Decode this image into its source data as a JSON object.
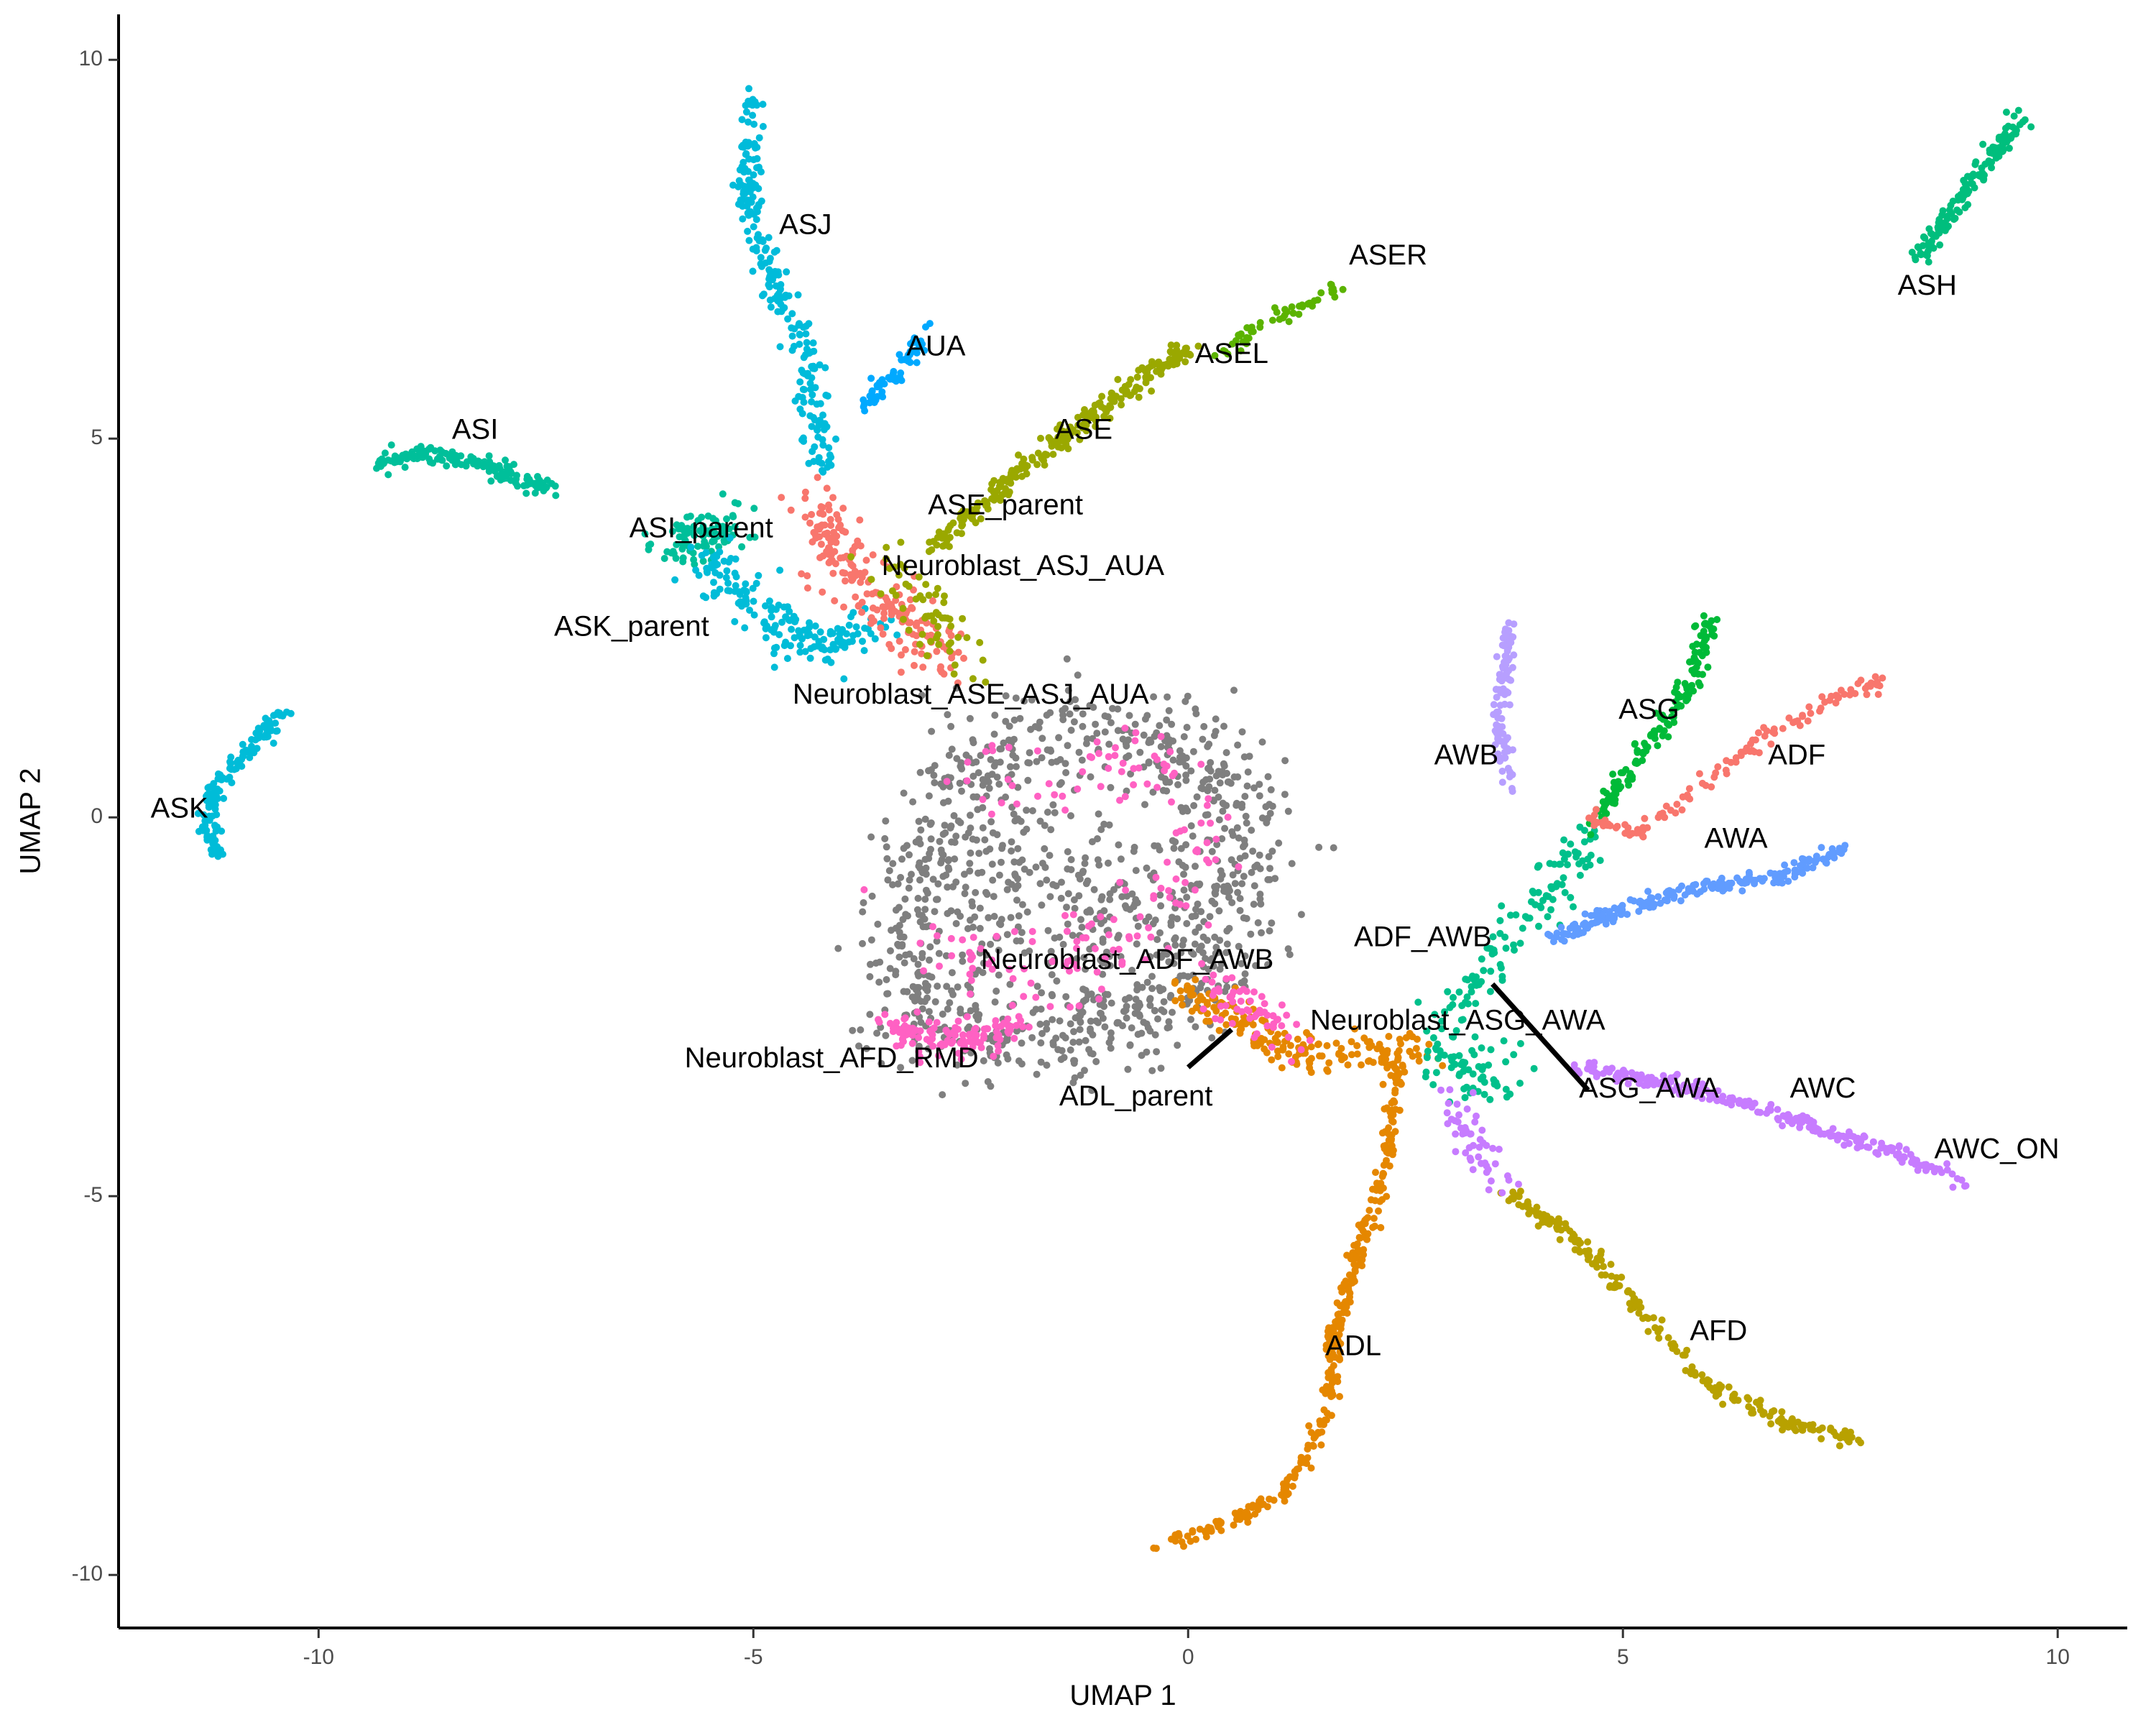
{
  "chart_data": {
    "type": "scatter",
    "title": "",
    "xlabel": "UMAP 1",
    "ylabel": "UMAP 2",
    "xlim": [
      -12.3,
      10.8
    ],
    "ylim": [
      -10.7,
      10.6
    ],
    "x_ticks": [
      -10,
      -5,
      0,
      5,
      10
    ],
    "y_ticks": [
      -10,
      -5,
      0,
      5,
      10
    ],
    "x_tick_labels": [
      "-10",
      "-5",
      "0",
      "5",
      "10"
    ],
    "y_tick_labels": [
      "-10",
      "-5",
      "0",
      "5",
      "10"
    ],
    "grid": false,
    "legend": "none",
    "colors": {
      "ASH": "#00BE7D",
      "ASJ": "#00BBDA",
      "AUA": "#00A9FF",
      "ASI": "#00BF9A",
      "ASER": "#5BB300",
      "ASEL": "#9AA800",
      "ASE": "#A6A400",
      "ASK": "#00BCD8",
      "ASG": "#00BA38",
      "ADF": "#F8766D",
      "AWB": "#B79FFF",
      "AWA": "#619CFF",
      "AWC": "#C77CFF",
      "AFD": "#B8A100",
      "ADL": "#E58700",
      "neuroblast": "#FF61C3",
      "parent": "#F8766D",
      "grey": "#7F7F7F",
      "asg_awa": "#00C08B"
    },
    "clusters": [
      {
        "name": "ASH",
        "color": "ASH",
        "path": [
          [
            9.6,
            9.3
          ],
          [
            9.3,
            8.8
          ],
          [
            8.9,
            8.2
          ],
          [
            8.6,
            7.7
          ],
          [
            8.4,
            7.4
          ]
        ],
        "n": 140,
        "spread": 0.06
      },
      {
        "name": "ASJ",
        "color": "ASJ",
        "path": [
          [
            -5.0,
            9.5
          ],
          [
            -5.1,
            8.5
          ],
          [
            -4.9,
            7.6
          ],
          [
            -4.7,
            6.9
          ],
          [
            -4.4,
            6.1
          ],
          [
            -4.3,
            5.3
          ],
          [
            -4.2,
            4.6
          ]
        ],
        "n": 230,
        "spread": 0.08
      },
      {
        "name": "AUA",
        "color": "AUA",
        "path": [
          [
            -3.0,
            6.5
          ],
          [
            -3.2,
            6.1
          ],
          [
            -3.5,
            5.7
          ],
          [
            -3.7,
            5.4
          ]
        ],
        "n": 60,
        "spread": 0.06
      },
      {
        "name": "ASI",
        "color": "ASI",
        "path": [
          [
            -9.3,
            4.7
          ],
          [
            -8.8,
            4.8
          ],
          [
            -8.2,
            4.7
          ],
          [
            -7.8,
            4.5
          ],
          [
            -7.3,
            4.3
          ]
        ],
        "n": 150,
        "spread": 0.06
      },
      {
        "name": "ASER",
        "color": "ASER",
        "path": [
          [
            0.3,
            6.1
          ],
          [
            1.0,
            6.6
          ],
          [
            1.8,
            7.0
          ]
        ],
        "n": 50,
        "spread": 0.05
      },
      {
        "name": "ASEL",
        "color": "ASEL",
        "path": [
          [
            -2.9,
            3.6
          ],
          [
            -2.4,
            4.1
          ],
          [
            -1.7,
            4.8
          ],
          [
            -1.0,
            5.4
          ],
          [
            -0.4,
            5.9
          ],
          [
            0.1,
            6.2
          ]
        ],
        "n": 240,
        "spread": 0.07
      },
      {
        "name": "ASI_parent",
        "color": "ASI",
        "path": [
          [
            -6.0,
            3.5
          ],
          [
            -5.6,
            3.7
          ],
          [
            -5.2,
            3.9
          ]
        ],
        "n": 90,
        "spread": 0.18
      },
      {
        "name": "ASK_parent",
        "color": "ASK",
        "path": [
          [
            -5.6,
            3.4
          ],
          [
            -5.0,
            2.8
          ],
          [
            -4.6,
            2.4
          ],
          [
            -4.1,
            2.3
          ],
          [
            -3.6,
            2.4
          ]
        ],
        "n": 170,
        "spread": 0.15
      },
      {
        "name": "ASK",
        "color": "ASK",
        "path": [
          [
            -10.4,
            1.4
          ],
          [
            -10.8,
            0.9
          ],
          [
            -11.2,
            0.4
          ],
          [
            -11.3,
            -0.1
          ],
          [
            -11.1,
            -0.5
          ]
        ],
        "n": 140,
        "spread": 0.05
      },
      {
        "name": "Neuroblast_ASJ_AUA",
        "color": "parent",
        "path": [
          [
            -4.3,
            4.2
          ],
          [
            -4.1,
            3.6
          ],
          [
            -3.8,
            3.1
          ],
          [
            -3.4,
            2.7
          ],
          [
            -3.0,
            2.3
          ],
          [
            -2.7,
            2.1
          ]
        ],
        "n": 200,
        "spread": 0.18
      },
      {
        "name": "Neuroblast_ASE_ASJ_AUA",
        "color": "ASEL",
        "path": [
          [
            -3.4,
            3.3
          ],
          [
            -3.0,
            2.8
          ],
          [
            -2.7,
            2.4
          ],
          [
            -2.4,
            2.0
          ]
        ],
        "n": 60,
        "spread": 0.2
      },
      {
        "name": "grey_core",
        "color": "grey",
        "path": [
          [
            -3.2,
            -2.5
          ],
          [
            -3.2,
            -1.0
          ],
          [
            -2.5,
            0.6
          ],
          [
            -1.5,
            1.1
          ],
          [
            -0.5,
            1.0
          ],
          [
            0.4,
            0.6
          ],
          [
            0.5,
            -0.6
          ],
          [
            0.3,
            -1.8
          ],
          [
            -0.5,
            -2.6
          ],
          [
            -1.5,
            -2.9
          ],
          [
            -2.6,
            -2.9
          ],
          [
            -3.2,
            -2.5
          ]
        ],
        "n": 900,
        "spread": 0.35
      },
      {
        "name": "grey_fill",
        "color": "grey",
        "path": [
          [
            -2.5,
            -1.5
          ],
          [
            -1.5,
            -0.5
          ],
          [
            -0.5,
            -1.5
          ],
          [
            -1.5,
            -2.0
          ]
        ],
        "n": 260,
        "spread": 0.55
      },
      {
        "name": "Neuroblast_AFD_RMD",
        "color": "neuroblast",
        "path": [
          [
            -3.4,
            -2.8
          ],
          [
            -2.9,
            -2.9
          ],
          [
            -2.4,
            -2.9
          ],
          [
            -2.0,
            -2.8
          ]
        ],
        "n": 120,
        "spread": 0.12
      },
      {
        "name": "neuroblast_scatter",
        "color": "neuroblast",
        "path": [
          [
            -3.2,
            -1.2
          ],
          [
            -2.5,
            -2.2
          ],
          [
            -1.0,
            -1.8
          ],
          [
            0.2,
            -0.5
          ],
          [
            -0.5,
            0.8
          ],
          [
            -2.5,
            0.5
          ]
        ],
        "n": 160,
        "spread": 0.3
      },
      {
        "name": "Neuroblast_ADF_AWB",
        "color": "ADL",
        "path": [
          [
            -0.1,
            -2.3
          ],
          [
            0.4,
            -2.5
          ],
          [
            0.8,
            -2.9
          ],
          [
            1.3,
            -3.1
          ],
          [
            2.0,
            -3.1
          ],
          [
            2.8,
            -3.1
          ]
        ],
        "n": 180,
        "spread": 0.12
      },
      {
        "name": "Neuroblast_ADF_AWB_pink",
        "color": "neuroblast",
        "path": [
          [
            0.4,
            -2.2
          ],
          [
            0.8,
            -2.6
          ],
          [
            1.2,
            -3.0
          ]
        ],
        "n": 60,
        "spread": 0.15
      },
      {
        "name": "ADL",
        "color": "ADL",
        "path": [
          [
            2.4,
            -3.2
          ],
          [
            2.3,
            -4.5
          ],
          [
            2.0,
            -5.6
          ],
          [
            1.7,
            -6.8
          ],
          [
            1.6,
            -7.9
          ],
          [
            1.2,
            -8.8
          ],
          [
            0.5,
            -9.3
          ],
          [
            -0.3,
            -9.6
          ]
        ],
        "n": 330,
        "spread": 0.05
      },
      {
        "name": "AFD",
        "color": "AFD",
        "path": [
          [
            3.6,
            -4.9
          ],
          [
            4.4,
            -5.5
          ],
          [
            5.2,
            -6.5
          ],
          [
            6.0,
            -7.5
          ],
          [
            6.9,
            -8.0
          ],
          [
            7.7,
            -8.2
          ]
        ],
        "n": 210,
        "spread": 0.05
      },
      {
        "name": "ADF_AWB",
        "color": "asg_awa",
        "path": [
          [
            3.0,
            -2.6
          ],
          [
            3.5,
            -1.9
          ],
          [
            4.1,
            -1.0
          ],
          [
            4.6,
            -0.2
          ]
        ],
        "n": 110,
        "spread": 0.15
      },
      {
        "name": "Neuroblast_ASG_AWA",
        "color": "asg_awa",
        "path": [
          [
            2.8,
            -3.0
          ],
          [
            3.3,
            -3.3
          ],
          [
            3.6,
            -3.6
          ]
        ],
        "n": 70,
        "spread": 0.2
      },
      {
        "name": "ASG",
        "color": "ASG",
        "path": [
          [
            4.6,
            -0.2
          ],
          [
            5.2,
            0.8
          ],
          [
            5.8,
            1.8
          ],
          [
            6.0,
            2.7
          ]
        ],
        "n": 150,
        "spread": 0.06
      },
      {
        "name": "ADF",
        "color": "ADF",
        "path": [
          [
            4.6,
            0.0
          ],
          [
            5.2,
            -0.2
          ],
          [
            6.8,
            1.2
          ],
          [
            7.5,
            1.6
          ],
          [
            8.0,
            1.8
          ]
        ],
        "n": 120,
        "spread": 0.05
      },
      {
        "name": "AWB",
        "color": "AWB",
        "path": [
          [
            3.7,
            2.5
          ],
          [
            3.6,
            1.6
          ],
          [
            3.6,
            0.9
          ],
          [
            3.7,
            0.4
          ]
        ],
        "n": 100,
        "spread": 0.05
      },
      {
        "name": "AWA",
        "color": "AWA",
        "path": [
          [
            4.2,
            -1.6
          ],
          [
            5.0,
            -1.2
          ],
          [
            5.9,
            -0.9
          ],
          [
            6.8,
            -0.8
          ],
          [
            7.6,
            -0.4
          ]
        ],
        "n": 200,
        "spread": 0.05
      },
      {
        "name": "AWC_ON",
        "color": "AWC",
        "path": [
          [
            4.5,
            -3.3
          ],
          [
            5.5,
            -3.5
          ],
          [
            6.5,
            -3.8
          ],
          [
            7.5,
            -4.2
          ],
          [
            8.3,
            -4.5
          ],
          [
            8.9,
            -4.8
          ]
        ],
        "n": 230,
        "spread": 0.05
      },
      {
        "name": "ASG_AWA_lower",
        "color": "AWC",
        "path": [
          [
            3.0,
            -3.6
          ],
          [
            3.3,
            -4.3
          ],
          [
            3.6,
            -4.9
          ]
        ],
        "n": 50,
        "spread": 0.12
      }
    ],
    "labels": [
      {
        "text": "ASH",
        "x": 8.5,
        "y": 7.0
      },
      {
        "text": "ASJ",
        "x": -4.4,
        "y": 7.8
      },
      {
        "text": "AUA",
        "x": -2.9,
        "y": 6.2
      },
      {
        "text": "ASER",
        "x": 2.3,
        "y": 7.4
      },
      {
        "text": "ASEL",
        "x": 0.5,
        "y": 6.1
      },
      {
        "text": "ASE",
        "x": -1.2,
        "y": 5.1
      },
      {
        "text": "ASI",
        "x": -8.2,
        "y": 5.1
      },
      {
        "text": "ASE_parent",
        "x": -2.1,
        "y": 4.1
      },
      {
        "text": "ASI_parent",
        "x": -5.6,
        "y": 3.8
      },
      {
        "text": "Neuroblast_ASJ_AUA",
        "x": -1.9,
        "y": 3.3
      },
      {
        "text": "ASK_parent",
        "x": -6.4,
        "y": 2.5
      },
      {
        "text": "Neuroblast_ASE_ASJ_AUA",
        "x": -2.5,
        "y": 1.6
      },
      {
        "text": "ASK",
        "x": -11.6,
        "y": 0.1
      },
      {
        "text": "AWB",
        "x": 3.2,
        "y": 0.8
      },
      {
        "text": "ASG",
        "x": 5.3,
        "y": 1.4
      },
      {
        "text": "ADF",
        "x": 7.0,
        "y": 0.8
      },
      {
        "text": "AWA",
        "x": 6.3,
        "y": -0.3
      },
      {
        "text": "ADF_AWB",
        "x": 2.7,
        "y": -1.6
      },
      {
        "text": "Neuroblast_ADF_AWB",
        "x": -0.7,
        "y": -1.9
      },
      {
        "text": "Neuroblast_ASG_AWA",
        "x": 3.1,
        "y": -2.7
      },
      {
        "text": "Neuroblast_AFD_RMD",
        "x": -4.1,
        "y": -3.2
      },
      {
        "text": "ADL_parent",
        "x": -0.6,
        "y": -3.7
      },
      {
        "text": "ASG_AWA",
        "x": 5.3,
        "y": -3.6
      },
      {
        "text": "AWC",
        "x": 7.3,
        "y": -3.6
      },
      {
        "text": "AWC_ON",
        "x": 9.3,
        "y": -4.4
      },
      {
        "text": "AFD",
        "x": 6.1,
        "y": -6.8
      },
      {
        "text": "ADL",
        "x": 1.9,
        "y": -7.0
      }
    ],
    "segments": [
      {
        "from": [
          0.0,
          -3.3
        ],
        "to": [
          0.5,
          -2.8
        ]
      },
      {
        "from": [
          3.5,
          -2.2
        ],
        "to": [
          4.6,
          -3.6
        ]
      }
    ]
  }
}
